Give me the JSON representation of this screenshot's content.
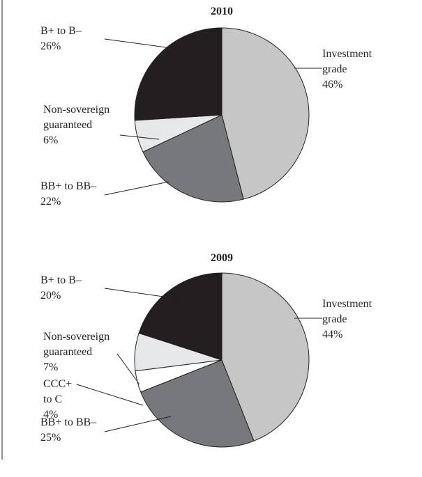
{
  "chart_data": [
    {
      "type": "pie",
      "title": "2010",
      "categories": [
        "Investment\ngrade",
        "BB+ to BB–",
        "Non-sovereign\nguaranteed",
        "B+ to B–"
      ],
      "values": [
        46,
        22,
        6,
        26
      ],
      "value_labels": [
        "46%",
        "22%",
        "6%",
        "26%"
      ],
      "colors": [
        "#c6c6c6",
        "#77787b",
        "#e6e7e8",
        "#231f20"
      ]
    },
    {
      "type": "pie",
      "title": "2009",
      "categories": [
        "Investment\ngrade",
        "BB+ to BB–",
        "CCC+\nto C",
        "Non-sovereign\nguaranteed",
        "B+ to B–"
      ],
      "values": [
        44,
        25,
        4,
        7,
        20
      ],
      "value_labels": [
        "44%",
        "25%",
        "4%",
        "7%",
        "20%"
      ],
      "colors": [
        "#c6c6c6",
        "#77787b",
        "#ffffff",
        "#e6e7e8",
        "#231f20"
      ]
    }
  ]
}
